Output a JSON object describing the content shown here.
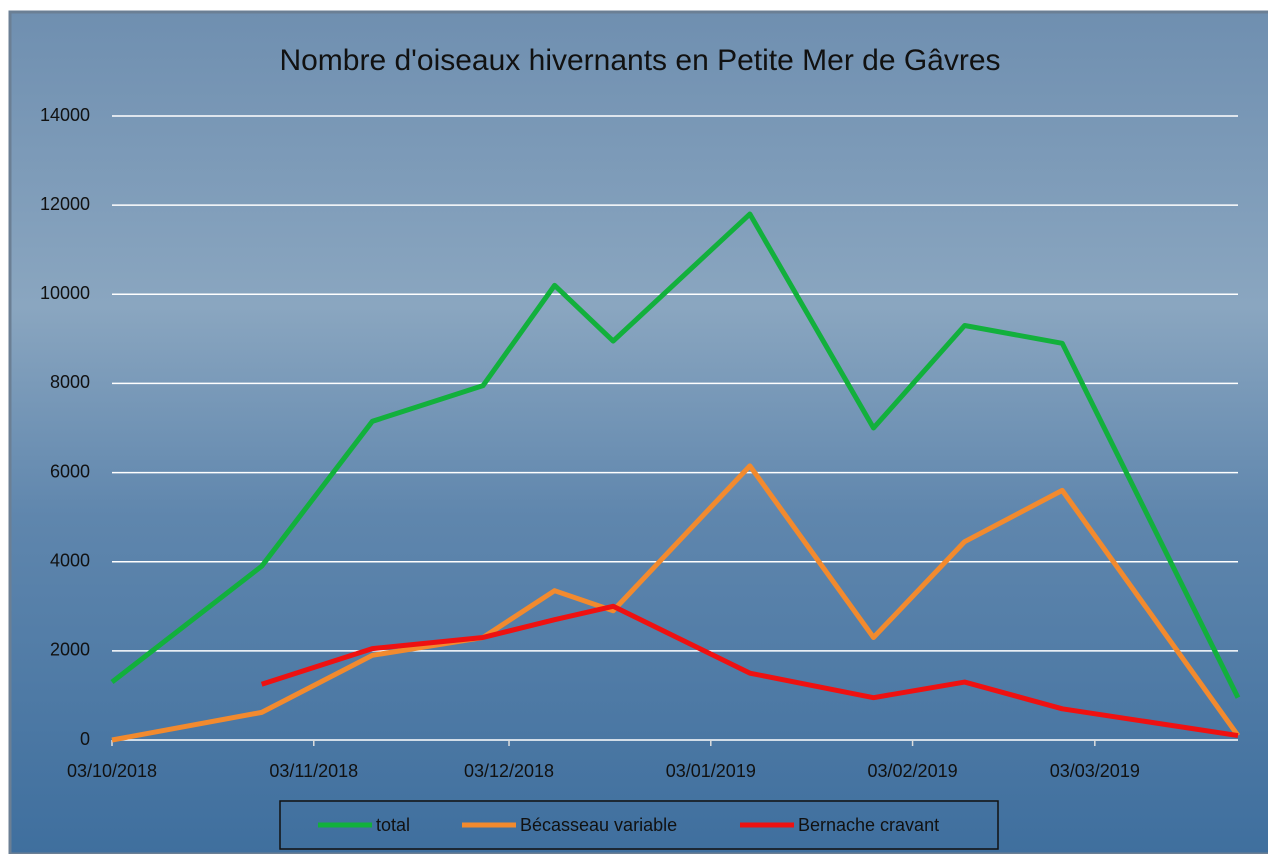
{
  "chart_data": {
    "type": "line",
    "title": "Nombre d'oiseaux hivernants en Petite Mer de Gâvres",
    "x": [
      "03/10/2018",
      "26/10/2018",
      "12/11/2018",
      "29/11/2018",
      "10/12/2018",
      "19/12/2018",
      "09/01/2019",
      "28/01/2019",
      "11/02/2019",
      "26/02/2019",
      "25/03/2019"
    ],
    "series": [
      {
        "name": "total",
        "color": "#12b03c",
        "values": [
          1300,
          3900,
          7150,
          7950,
          10200,
          8950,
          11800,
          7000,
          9300,
          8900,
          950
        ]
      },
      {
        "name": "Bécasseau variable",
        "color": "#f28a2e",
        "values": [
          0,
          620,
          1900,
          2300,
          3350,
          2900,
          6150,
          2300,
          4450,
          5600,
          100
        ]
      },
      {
        "name": "Bernache cravant",
        "color": "#ee1111",
        "values": [
          null,
          1250,
          2050,
          2300,
          2700,
          3000,
          1500,
          950,
          1300,
          700,
          100
        ]
      }
    ],
    "xlim": [
      "03/10/2018",
      "25/03/2019"
    ],
    "xticks": [
      "03/10/2018",
      "03/11/2018",
      "03/12/2018",
      "03/01/2019",
      "03/02/2019",
      "03/03/2019"
    ],
    "ylim": [
      0,
      14000
    ],
    "yticks": [
      0,
      2000,
      4000,
      6000,
      8000,
      10000,
      12000,
      14000
    ],
    "grid": true,
    "legend": "bottom"
  }
}
